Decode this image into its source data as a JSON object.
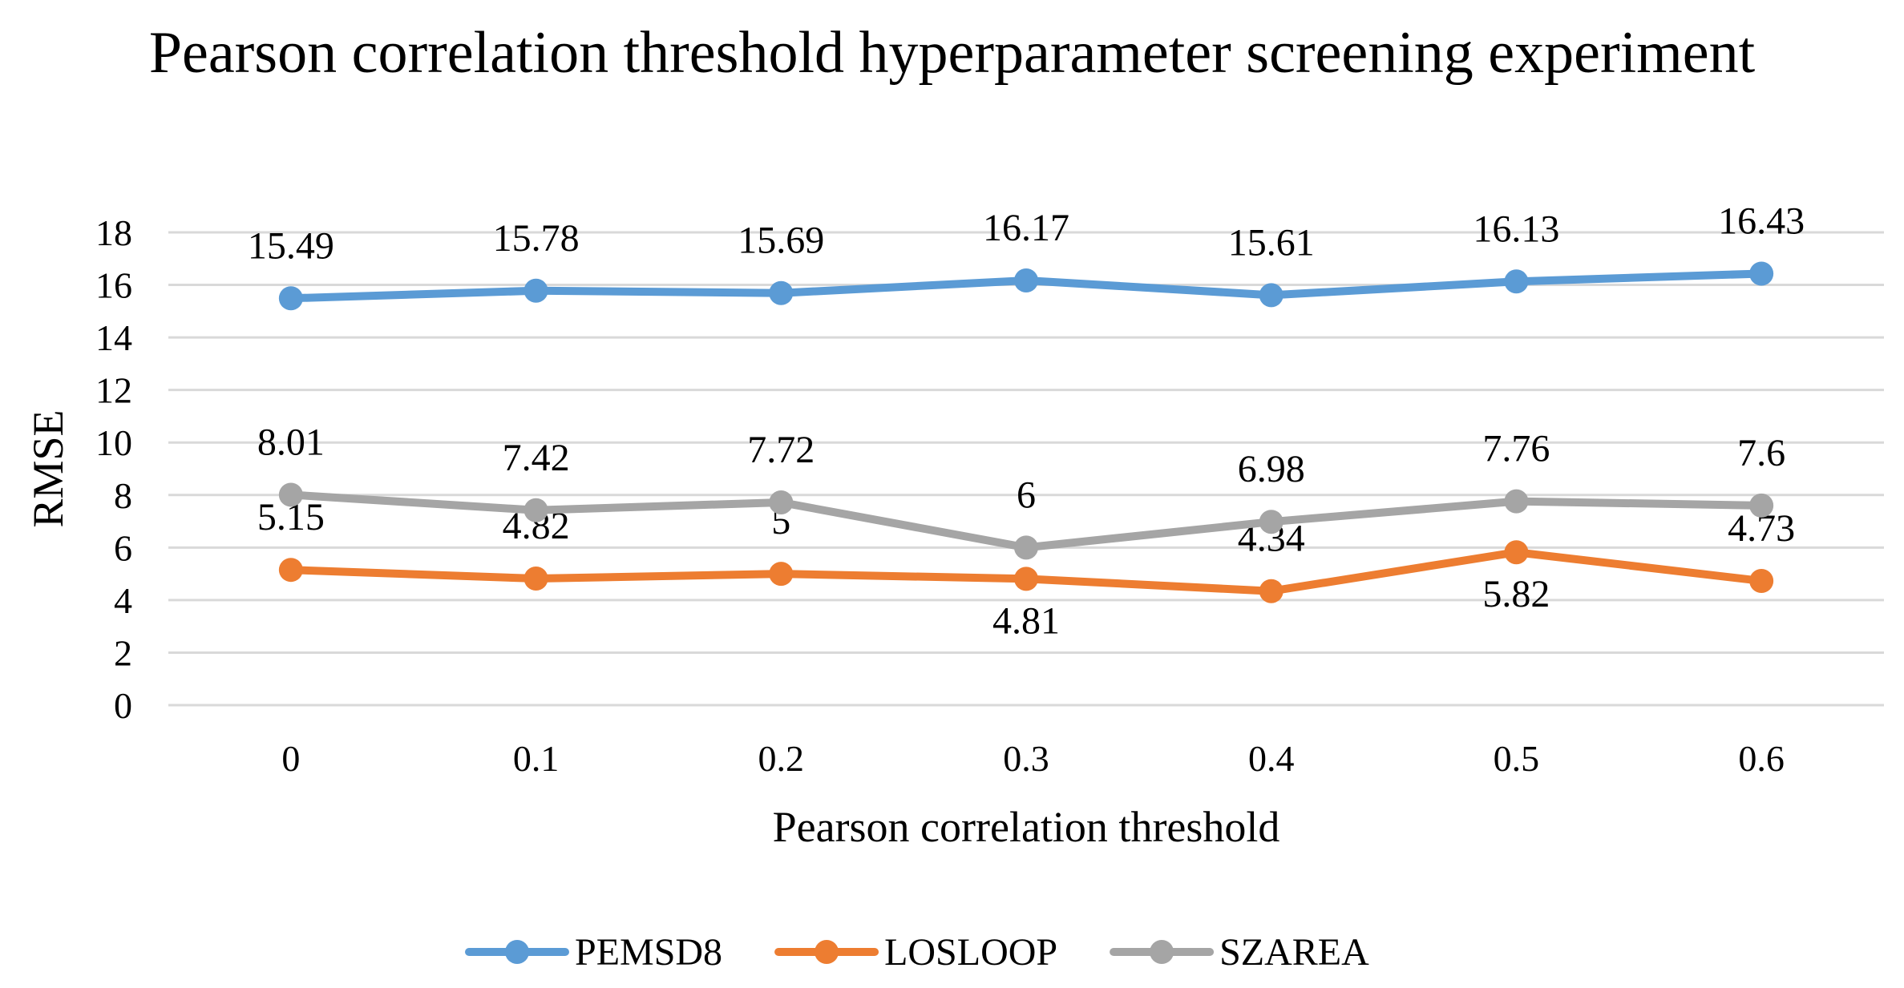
{
  "chart_data": {
    "type": "line",
    "title": "Pearson correlation threshold hyperparameter screening experiment",
    "xlabel": "Pearson correlation threshold",
    "ylabel": "RMSE",
    "categories": [
      "0",
      "0.1",
      "0.2",
      "0.3",
      "0.4",
      "0.5",
      "0.6"
    ],
    "ylim": [
      0,
      18
    ],
    "yticks": [
      "0",
      "2",
      "4",
      "6",
      "8",
      "10",
      "12",
      "14",
      "16",
      "18"
    ],
    "grid": true,
    "legend_position": "bottom",
    "series": [
      {
        "name": "PEMSD8",
        "color": "#5B9BD5",
        "values": [
          15.49,
          15.78,
          15.69,
          16.17,
          15.61,
          16.13,
          16.43
        ],
        "labels": [
          "15.49",
          "15.78",
          "15.69",
          "16.17",
          "15.61",
          "16.13",
          "16.43"
        ],
        "label_side": [
          "above",
          "above",
          "above",
          "above",
          "above",
          "above",
          "above"
        ]
      },
      {
        "name": "LOSLOOP",
        "color": "#ED7D31",
        "values": [
          5.15,
          4.82,
          5,
          4.81,
          4.34,
          5.82,
          4.73
        ],
        "labels": [
          "5.15",
          "4.82",
          "5",
          "4.81",
          "4.34",
          "5.82",
          "4.73"
        ],
        "label_side": [
          "above",
          "above",
          "above",
          "below",
          "above",
          "below",
          "above"
        ]
      },
      {
        "name": "SZAREA",
        "color": "#A5A5A5",
        "values": [
          8.01,
          7.42,
          7.72,
          6,
          6.98,
          7.76,
          7.6
        ],
        "labels": [
          "8.01",
          "7.42",
          "7.72",
          "6",
          "6.98",
          "7.76",
          "7.6"
        ],
        "label_side": [
          "above",
          "above",
          "above",
          "above",
          "above",
          "above",
          "above"
        ]
      }
    ]
  }
}
